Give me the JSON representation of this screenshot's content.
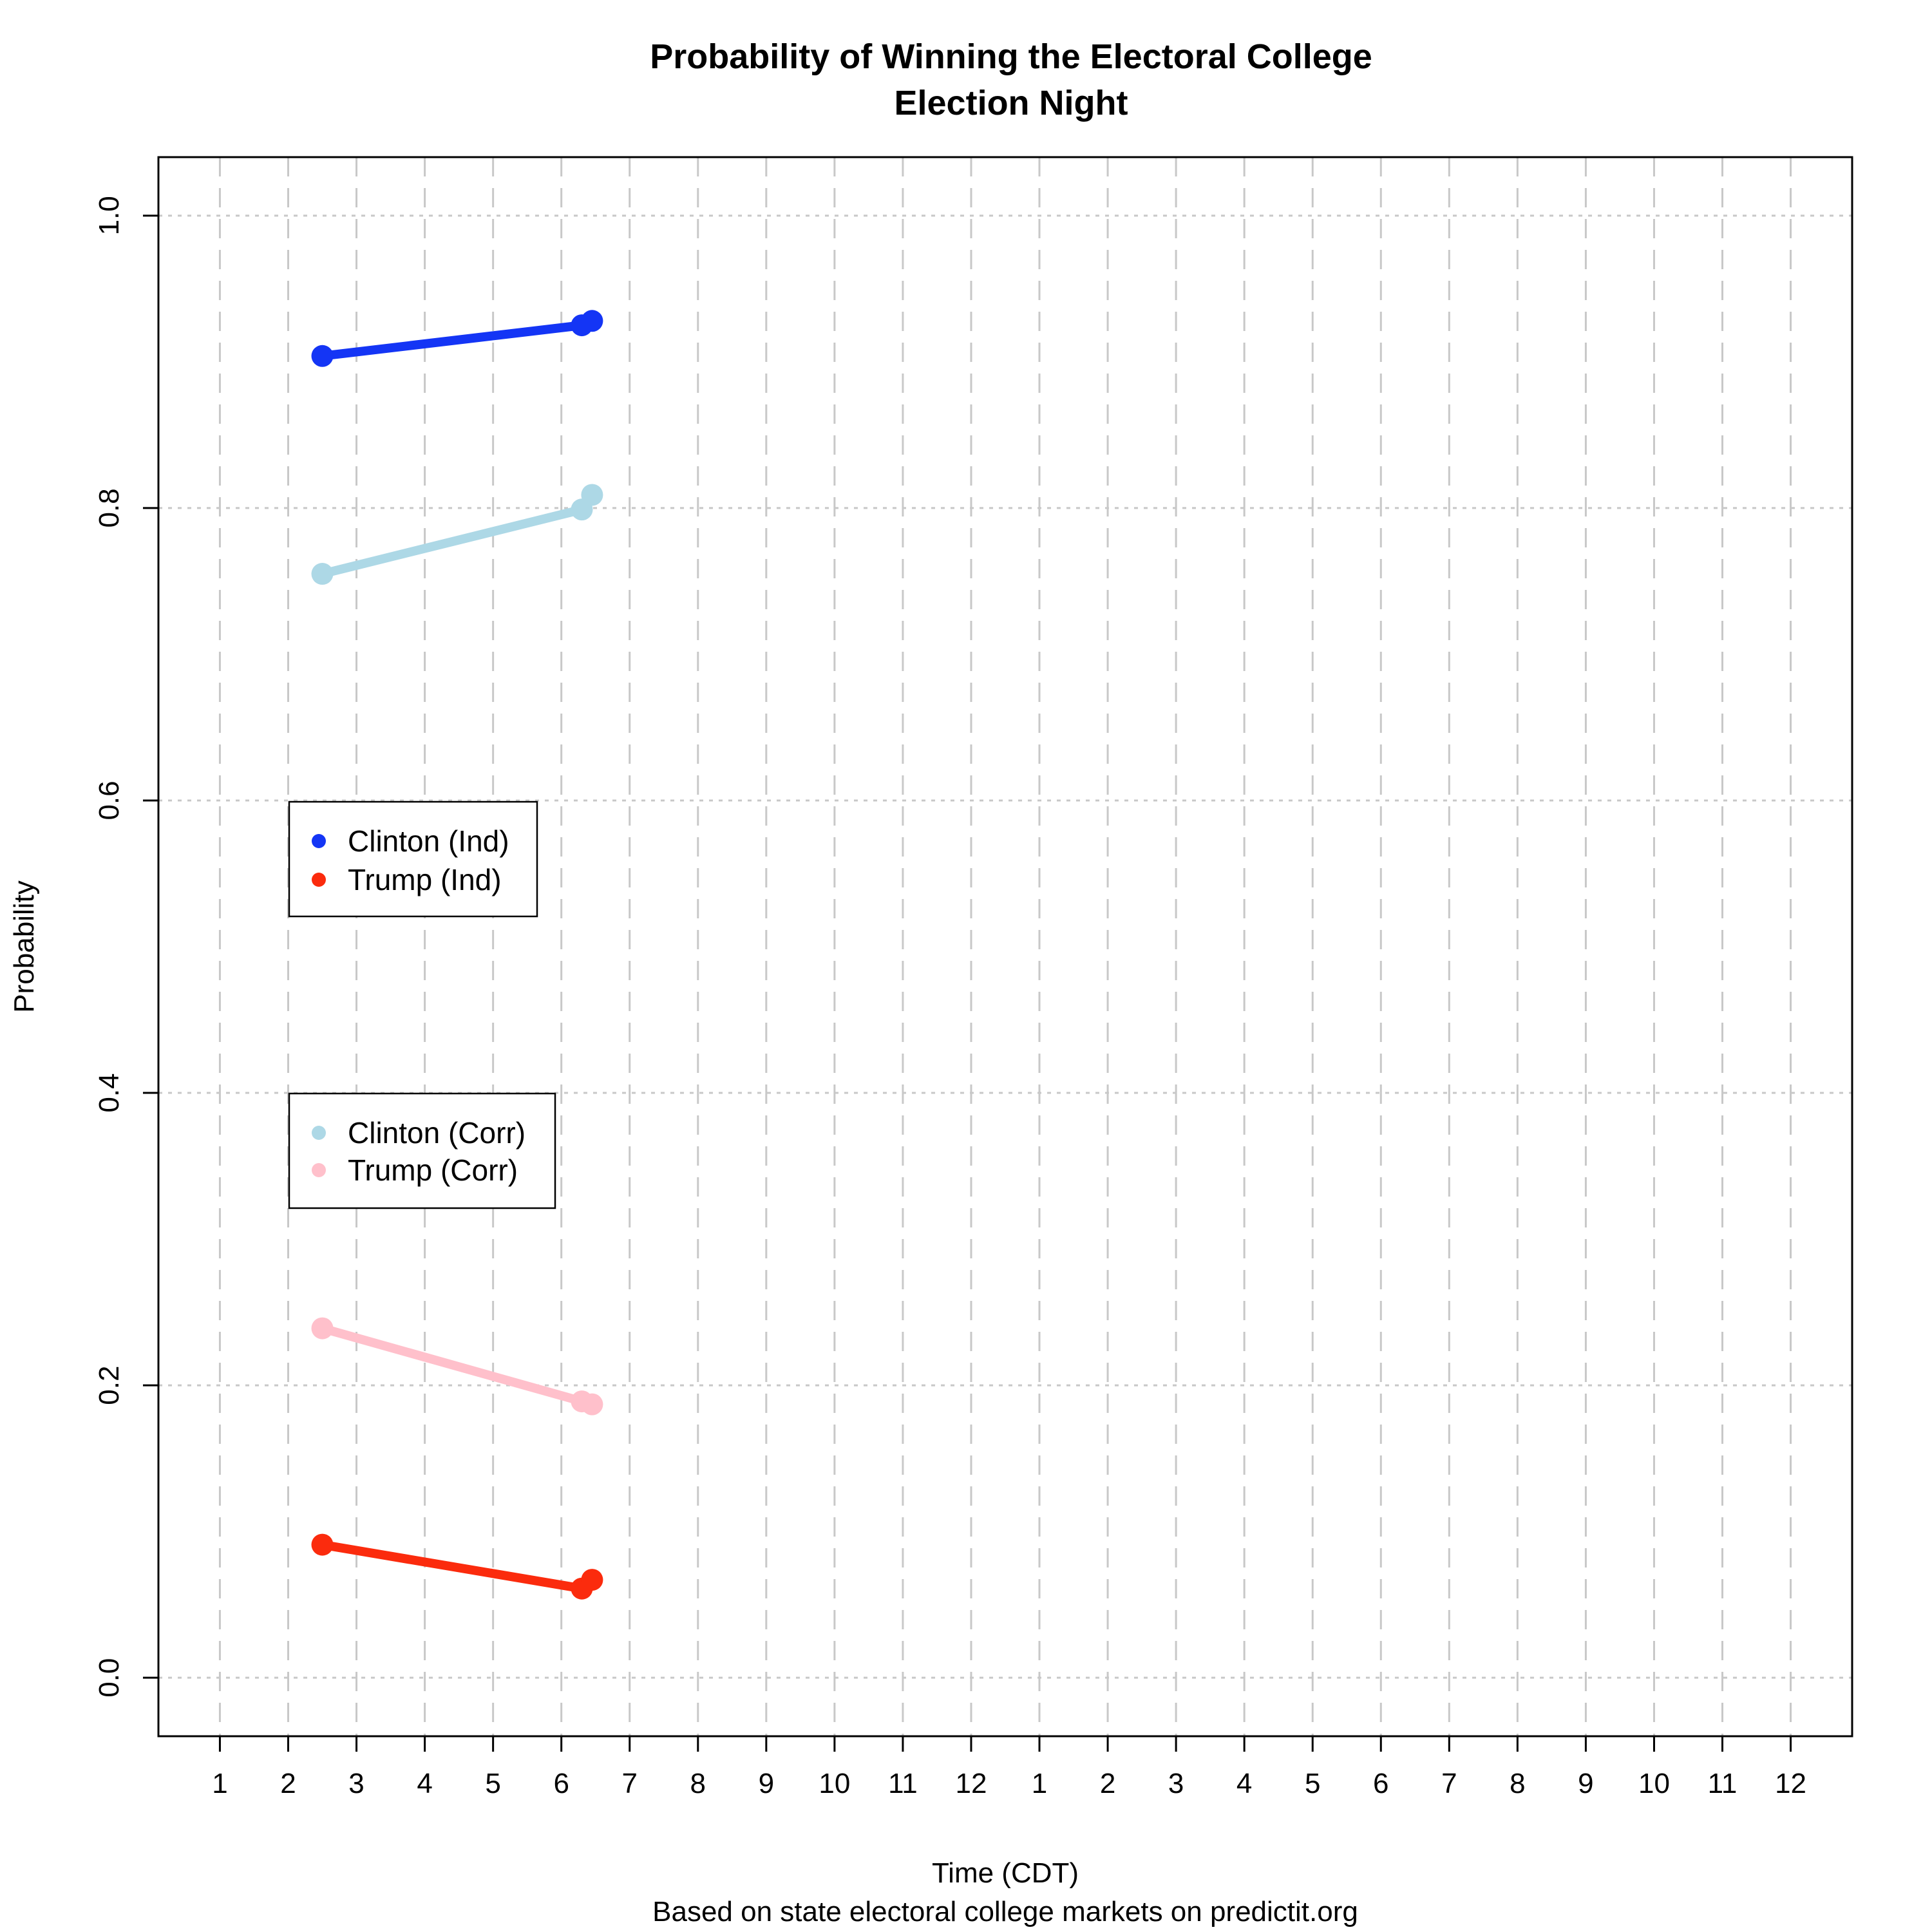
{
  "chart_data": {
    "type": "line",
    "title": "Probability of Winning the Electoral College",
    "subtitle": "Election Night",
    "xlabel": "Time (CDT)",
    "caption": "Based on state electoral college markets on predictit.org",
    "ylabel": "Probability",
    "xlim": [
      0.1,
      24.9
    ],
    "ylim": [
      -0.04,
      1.04
    ],
    "x_tick_values": [
      1,
      2,
      3,
      4,
      5,
      6,
      7,
      8,
      9,
      10,
      11,
      12,
      13,
      14,
      15,
      16,
      17,
      18,
      19,
      20,
      21,
      22,
      23,
      24
    ],
    "x_tick_labels": [
      "1",
      "2",
      "3",
      "4",
      "5",
      "6",
      "7",
      "8",
      "9",
      "10",
      "11",
      "12",
      "1",
      "2",
      "3",
      "4",
      "5",
      "6",
      "7",
      "8",
      "9",
      "10",
      "11",
      "12"
    ],
    "y_ticks": [
      0.0,
      0.2,
      0.4,
      0.6,
      0.8,
      1.0
    ],
    "y_tick_labels": [
      "0.0",
      "0.2",
      "0.4",
      "0.6",
      "0.8",
      "1.0"
    ],
    "grid": true,
    "series": [
      {
        "name": "Clinton (Ind)",
        "color": "#1435f5",
        "x": [
          2.5,
          6.3,
          6.45
        ],
        "y": [
          0.904,
          0.925,
          0.928
        ]
      },
      {
        "name": "Trump (Ind)",
        "color": "#fb2b0d",
        "x": [
          2.5,
          6.3,
          6.45
        ],
        "y": [
          0.091,
          0.061,
          0.067
        ]
      },
      {
        "name": "Clinton (Corr)",
        "color": "#add8e6",
        "x": [
          2.5,
          6.3,
          6.45
        ],
        "y": [
          0.755,
          0.799,
          0.809
        ]
      },
      {
        "name": "Trump (Corr)",
        "color": "#ffc0cb",
        "x": [
          2.5,
          6.3,
          6.45
        ],
        "y": [
          0.239,
          0.189,
          0.187
        ]
      }
    ],
    "legends": [
      {
        "placement": "middle-left",
        "entries": [
          "Clinton (Ind)",
          "Trump (Ind)"
        ]
      },
      {
        "placement": "lower-middle-left",
        "entries": [
          "Clinton (Corr)",
          "Trump (Corr)"
        ]
      }
    ]
  }
}
